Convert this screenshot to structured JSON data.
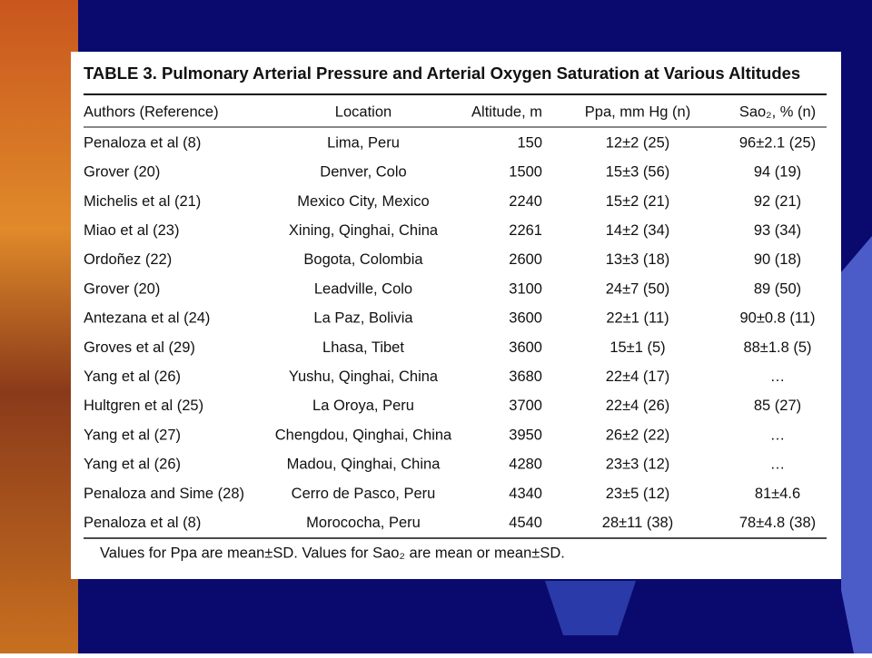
{
  "table": {
    "title": "TABLE 3.   Pulmonary Arterial Pressure and Arterial Oxygen Saturation at Various Altitudes",
    "headers": [
      "Authors (Reference)",
      "Location",
      "Altitude, m",
      "Ppa, mm Hg (n)",
      "Sao₂, % (n)"
    ],
    "rows": [
      [
        "Penaloza et al (8)",
        "Lima, Peru",
        "150",
        "12±2 (25)",
        "96±2.1 (25)"
      ],
      [
        "Grover (20)",
        "Denver, Colo",
        "1500",
        "15±3 (56)",
        "94 (19)"
      ],
      [
        "Michelis et al (21)",
        "Mexico City, Mexico",
        "2240",
        "15±2 (21)",
        "92 (21)"
      ],
      [
        "Miao et al (23)",
        "Xining, Qinghai, China",
        "2261",
        "14±2 (34)",
        "93 (34)"
      ],
      [
        "Ordoñez (22)",
        "Bogota, Colombia",
        "2600",
        "13±3 (18)",
        "90 (18)"
      ],
      [
        "Grover (20)",
        "Leadville, Colo",
        "3100",
        "24±7 (50)",
        "89 (50)"
      ],
      [
        "Antezana et al (24)",
        "La Paz, Bolivia",
        "3600",
        "22±1 (11)",
        "90±0.8 (11)"
      ],
      [
        "Groves et al (29)",
        "Lhasa, Tibet",
        "3600",
        "15±1 (5)",
        "88±1.8 (5)"
      ],
      [
        "Yang et al (26)",
        "Yushu, Qinghai, China",
        "3680",
        "22±4 (17)",
        "…"
      ],
      [
        "Hultgren et al (25)",
        "La Oroya, Peru",
        "3700",
        "22±4 (26)",
        "85 (27)"
      ],
      [
        "Yang et al (27)",
        "Chengdou, Qinghai, China",
        "3950",
        "26±2 (22)",
        "…"
      ],
      [
        "Yang et al (26)",
        "Madou, Qinghai, China",
        "4280",
        "23±3 (12)",
        "…"
      ],
      [
        "Penaloza and Sime (28)",
        "Cerro de Pasco, Peru",
        "4340",
        "23±5 (12)",
        "81±4.6"
      ],
      [
        "Penaloza et al (8)",
        "Morococha, Peru",
        "4540",
        "28±11 (38)",
        "78±4.8 (38)"
      ]
    ],
    "footnote": "Values for Ppa are mean±SD. Values for Sao₂ are mean or mean±SD."
  }
}
